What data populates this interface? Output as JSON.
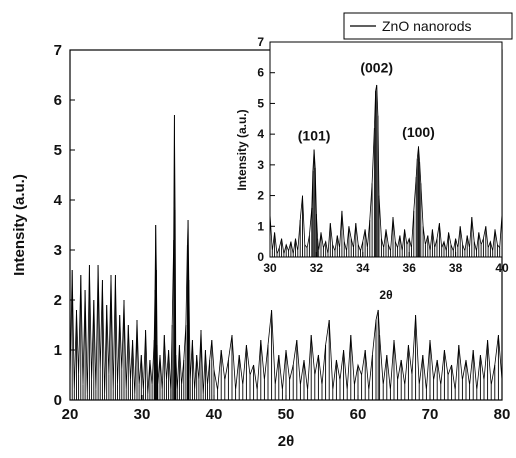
{
  "chart_data": [
    {
      "type": "line",
      "role": "main",
      "xlabel": "2θ",
      "ylabel": "Intensity (a.u.)",
      "xlim": [
        20,
        80
      ],
      "ylim": [
        0,
        7
      ],
      "xticks": [
        "20",
        "30",
        "40",
        "50",
        "60",
        "70",
        "80"
      ],
      "yticks": [
        "0",
        "1",
        "2",
        "3",
        "4",
        "5",
        "6",
        "7"
      ],
      "legend": {
        "position": "top-right",
        "entries": [
          "ZnO nanorods"
        ]
      },
      "series": [
        {
          "name": "ZnO nanorods",
          "color": "#000000",
          "x": [
            20.0,
            20.3,
            20.6,
            20.9,
            21.2,
            21.5,
            21.8,
            22.1,
            22.4,
            22.7,
            23.0,
            23.3,
            23.6,
            23.9,
            24.2,
            24.5,
            24.8,
            25.1,
            25.4,
            25.7,
            26.0,
            26.3,
            26.6,
            26.9,
            27.2,
            27.5,
            27.8,
            28.1,
            28.4,
            28.7,
            29.0,
            29.3,
            29.6,
            29.9,
            30.2,
            30.5,
            30.8,
            31.1,
            31.4,
            31.7,
            31.8,
            31.9,
            32.0,
            32.1,
            32.2,
            32.5,
            32.8,
            33.1,
            33.4,
            33.7,
            34.0,
            34.2,
            34.4,
            34.5,
            34.6,
            34.7,
            34.9,
            35.2,
            35.5,
            35.8,
            36.1,
            36.3,
            36.4,
            36.5,
            36.7,
            37.0,
            37.3,
            37.6,
            37.9,
            38.2,
            38.5,
            38.8,
            39.1,
            39.4,
            39.7,
            40.0,
            40.5,
            41.0,
            41.5,
            42.0,
            42.5,
            43.0,
            43.5,
            44.0,
            44.5,
            45.0,
            45.5,
            46.0,
            46.5,
            47.0,
            47.5,
            48.0,
            48.5,
            49.0,
            49.5,
            50.0,
            50.5,
            51.0,
            51.5,
            52.0,
            52.5,
            53.0,
            53.5,
            54.0,
            54.5,
            55.0,
            55.5,
            56.0,
            56.5,
            57.0,
            57.5,
            58.0,
            58.5,
            59.0,
            59.5,
            60.0,
            60.5,
            61.0,
            61.5,
            62.0,
            62.5,
            62.8,
            63.0,
            63.5,
            64.0,
            64.5,
            65.0,
            65.5,
            66.0,
            66.5,
            67.0,
            67.5,
            68.0,
            68.5,
            69.0,
            69.5,
            70.0,
            70.5,
            71.0,
            71.5,
            72.0,
            72.5,
            73.0,
            73.5,
            74.0,
            74.5,
            75.0,
            75.5,
            76.0,
            76.5,
            77.0,
            77.5,
            78.0,
            78.5,
            79.0,
            79.5,
            80.0
          ],
          "y": [
            0.4,
            2.6,
            0.2,
            1.8,
            0.5,
            2.5,
            0.3,
            2.2,
            0.1,
            2.7,
            0.4,
            2.0,
            0.2,
            2.7,
            0.6,
            2.4,
            0.1,
            1.9,
            0.5,
            2.5,
            0.2,
            2.5,
            0.3,
            1.7,
            0.6,
            2.0,
            0.2,
            1.5,
            0.4,
            1.2,
            0.1,
            1.6,
            0.3,
            0.9,
            0.2,
            1.4,
            0.1,
            0.8,
            0.3,
            1.2,
            2.2,
            3.5,
            2.6,
            1.1,
            0.3,
            0.9,
            0.2,
            1.3,
            0.4,
            1.0,
            0.2,
            1.5,
            3.2,
            5.7,
            3.8,
            0.9,
            0.2,
            1.1,
            0.3,
            0.8,
            1.5,
            3.1,
            3.6,
            2.4,
            0.4,
            1.2,
            0.2,
            0.9,
            0.4,
            1.4,
            0.1,
            1.0,
            0.3,
            0.8,
            1.2,
            0.6,
            0.2,
            1.0,
            0.4,
            0.8,
            1.3,
            0.2,
            0.9,
            0.3,
            1.1,
            0.5,
            0.7,
            0.2,
            1.2,
            0.4,
            1.1,
            1.8,
            0.3,
            0.9,
            0.2,
            1.0,
            0.4,
            0.7,
            1.2,
            0.3,
            0.8,
            0.2,
            1.3,
            0.5,
            0.9,
            0.3,
            1.1,
            1.6,
            0.2,
            0.8,
            0.4,
            1.0,
            0.2,
            1.3,
            0.3,
            0.7,
            0.5,
            1.0,
            0.2,
            0.9,
            1.6,
            1.8,
            1.3,
            0.3,
            0.9,
            0.2,
            1.2,
            0.4,
            0.8,
            0.3,
            1.1,
            0.5,
            1.7,
            0.3,
            0.9,
            0.2,
            1.2,
            0.4,
            0.8,
            0.3,
            1.0,
            0.5,
            0.7,
            0.2,
            1.1,
            0.4,
            0.8,
            0.3,
            1.0,
            0.2,
            0.9,
            0.4,
            1.2,
            0.3,
            0.7,
            1.3,
            0.4
          ]
        }
      ]
    },
    {
      "type": "line",
      "role": "inset",
      "xlabel": "2θ",
      "ylabel": "Intensity (a.u.)",
      "xlim": [
        30,
        40
      ],
      "ylim": [
        0,
        7
      ],
      "xticks": [
        "30",
        "32",
        "34",
        "36",
        "38",
        "40"
      ],
      "yticks": [
        "0",
        "1",
        "2",
        "3",
        "4",
        "5",
        "6",
        "7"
      ],
      "annotations": [
        {
          "text": "(101)",
          "x": 31.9,
          "y": 3.8
        },
        {
          "text": "(002)",
          "x": 34.6,
          "y": 6.0
        },
        {
          "text": "(100)",
          "x": 36.4,
          "y": 3.9
        }
      ],
      "series": [
        {
          "name": "ZnO nanorods",
          "color": "#000000",
          "x": [
            30.0,
            30.1,
            30.2,
            30.3,
            30.4,
            30.5,
            30.6,
            30.7,
            30.8,
            30.9,
            31.0,
            31.1,
            31.2,
            31.3,
            31.4,
            31.5,
            31.6,
            31.7,
            31.8,
            31.85,
            31.9,
            31.95,
            32.0,
            32.05,
            32.1,
            32.2,
            32.3,
            32.4,
            32.5,
            32.6,
            32.7,
            32.8,
            32.9,
            33.0,
            33.1,
            33.2,
            33.3,
            33.4,
            33.5,
            33.6,
            33.7,
            33.8,
            33.9,
            34.0,
            34.1,
            34.2,
            34.3,
            34.4,
            34.5,
            34.55,
            34.6,
            34.65,
            34.7,
            34.8,
            34.9,
            35.0,
            35.1,
            35.2,
            35.3,
            35.4,
            35.5,
            35.6,
            35.7,
            35.8,
            35.9,
            36.0,
            36.1,
            36.2,
            36.3,
            36.35,
            36.4,
            36.45,
            36.5,
            36.6,
            36.7,
            36.8,
            36.9,
            37.0,
            37.1,
            37.2,
            37.3,
            37.4,
            37.5,
            37.6,
            37.7,
            37.8,
            37.9,
            38.0,
            38.1,
            38.2,
            38.3,
            38.4,
            38.5,
            38.6,
            38.7,
            38.8,
            38.9,
            39.0,
            39.1,
            39.2,
            39.3,
            39.4,
            39.5,
            39.6,
            39.7,
            39.8,
            39.9,
            40.0
          ],
          "y": [
            1.4,
            0.2,
            0.8,
            0.1,
            0.3,
            0.6,
            0.1,
            0.4,
            0.2,
            0.5,
            0.1,
            0.6,
            0.2,
            1.2,
            2.0,
            0.4,
            0.3,
            0.7,
            1.6,
            2.8,
            3.5,
            2.9,
            1.4,
            0.6,
            0.2,
            0.8,
            0.3,
            0.5,
            0.1,
            1.1,
            0.4,
            0.2,
            0.7,
            0.3,
            1.5,
            0.5,
            0.2,
            1.0,
            0.6,
            0.3,
            1.1,
            0.4,
            0.2,
            0.5,
            0.9,
            0.3,
            1.2,
            2.4,
            4.2,
            5.4,
            5.6,
            4.6,
            2.0,
            0.6,
            0.3,
            0.9,
            0.4,
            0.2,
            1.3,
            0.5,
            0.3,
            0.7,
            0.2,
            0.9,
            0.4,
            0.6,
            0.3,
            1.5,
            2.6,
            3.2,
            3.6,
            3.1,
            2.4,
            1.0,
            0.4,
            0.7,
            0.2,
            0.9,
            0.3,
            0.6,
            1.1,
            0.3,
            0.5,
            0.2,
            0.8,
            0.4,
            0.2,
            0.6,
            0.3,
            1.0,
            0.4,
            0.2,
            0.7,
            0.3,
            1.3,
            0.5,
            0.2,
            0.8,
            0.4,
            0.6,
            1.0,
            0.3,
            0.5,
            0.2,
            0.9,
            0.4,
            0.3,
            1.4
          ]
        }
      ]
    }
  ]
}
